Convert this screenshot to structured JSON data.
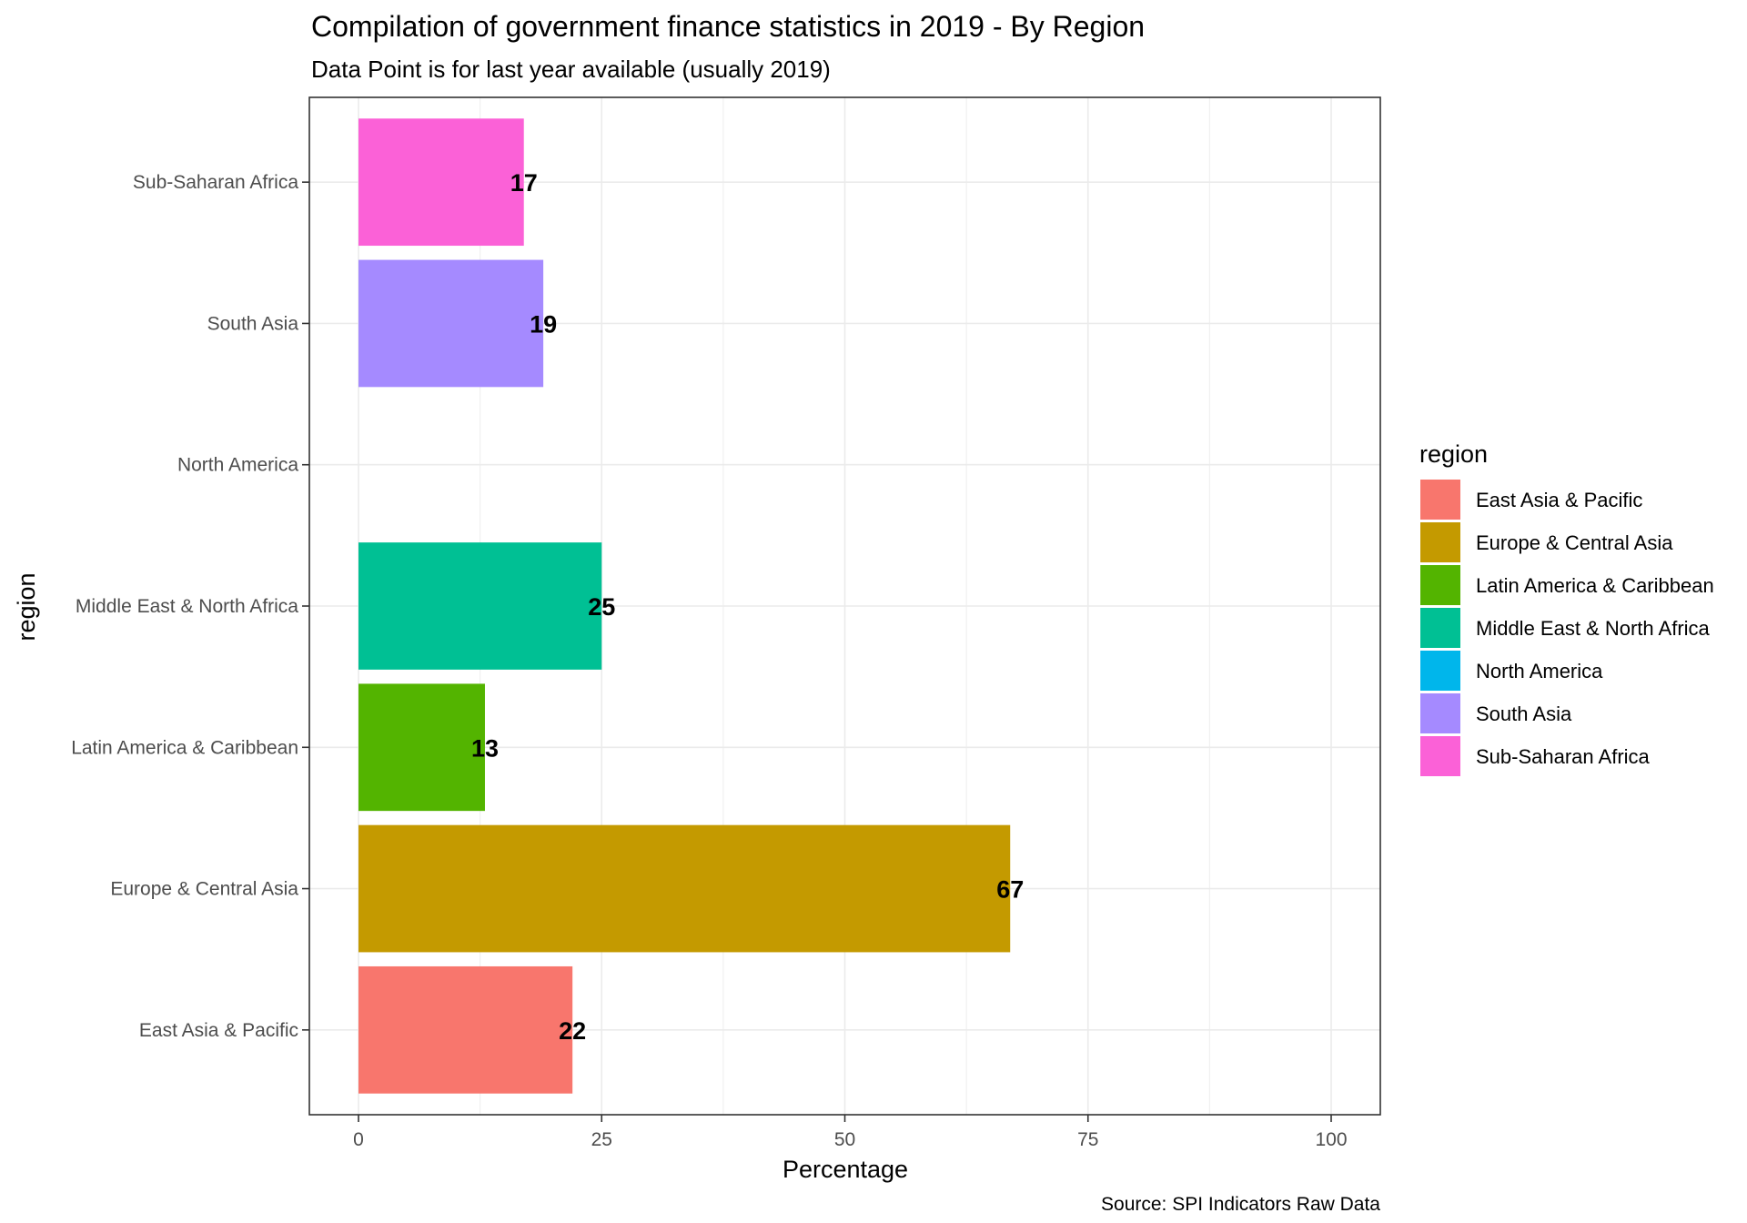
{
  "chart_data": {
    "type": "bar",
    "orientation": "horizontal",
    "title": "Compilation of government finance statistics in 2019 - By Region",
    "subtitle": "Data Point is for last year available (usually 2019)",
    "xlabel": "Percentage",
    "ylabel": "region",
    "caption": "Source: SPI Indicators Raw Data",
    "xlim": [
      0,
      100
    ],
    "x_ticks": [
      "0",
      "25",
      "50",
      "75",
      "100"
    ],
    "grid": true,
    "legend": {
      "title": "region",
      "position": "right"
    },
    "categories": [
      "East Asia & Pacific",
      "Europe & Central Asia",
      "Latin America & Caribbean",
      "Middle East & North Africa",
      "North America",
      "South Asia",
      "Sub-Saharan Africa"
    ],
    "values": [
      22,
      67,
      13,
      25,
      null,
      19,
      17
    ],
    "data_labels": [
      "22",
      "67",
      "13",
      "25",
      "",
      "19",
      "17"
    ],
    "colors": [
      "#F8766D",
      "#C49A00",
      "#53B400",
      "#00C094",
      "#00B6EB",
      "#A58AFF",
      "#FB61D7"
    ]
  }
}
